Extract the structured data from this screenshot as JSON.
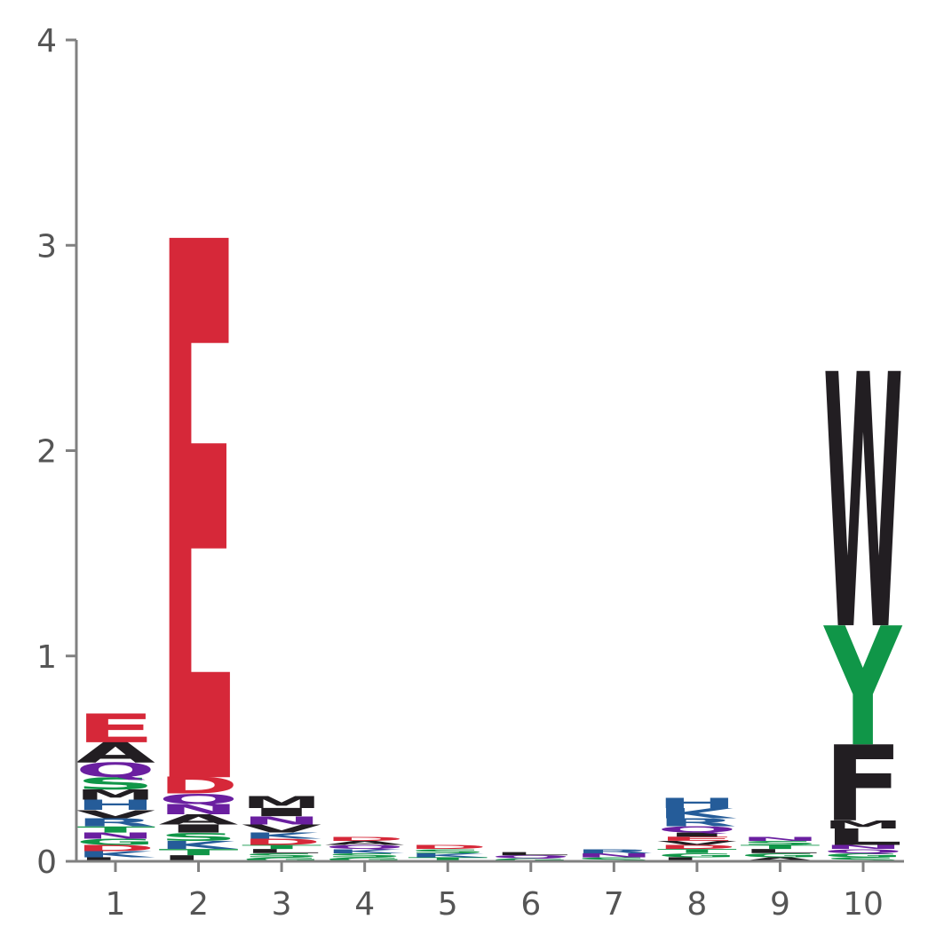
{
  "chart_data": {
    "type": "sequence-logo",
    "title": "",
    "xlabel": "",
    "ylabel": "",
    "ylim": [
      0,
      4
    ],
    "y_ticks": [
      "0",
      "1",
      "2",
      "3",
      "4"
    ],
    "x_ticks": [
      "1",
      "2",
      "3",
      "4",
      "5",
      "6",
      "7",
      "8",
      "9",
      "10"
    ],
    "grid": false,
    "legend": "none",
    "colors": {
      "acidic": "#d62839",
      "polar": "#109648",
      "basic": "#255c99",
      "hydrophobic": "#221e22",
      "neutral": "#6a1fa0"
    },
    "positions": [
      {
        "position": "1",
        "letters": [
          {
            "letter": "L",
            "group": "hydrophobic",
            "height": 0.02
          },
          {
            "letter": "K",
            "group": "basic",
            "height": 0.03
          },
          {
            "letter": "D",
            "group": "acidic",
            "height": 0.03
          },
          {
            "letter": "G",
            "group": "polar",
            "height": 0.03
          },
          {
            "letter": "N",
            "group": "neutral",
            "height": 0.03
          },
          {
            "letter": "T",
            "group": "polar",
            "height": 0.03
          },
          {
            "letter": "R",
            "group": "basic",
            "height": 0.04
          },
          {
            "letter": "V",
            "group": "hydrophobic",
            "height": 0.04
          },
          {
            "letter": "H",
            "group": "basic",
            "height": 0.05
          },
          {
            "letter": "M",
            "group": "hydrophobic",
            "height": 0.05
          },
          {
            "letter": "S",
            "group": "polar",
            "height": 0.06
          },
          {
            "letter": "Q",
            "group": "neutral",
            "height": 0.07
          },
          {
            "letter": "A",
            "group": "hydrophobic",
            "height": 0.1
          },
          {
            "letter": "E",
            "group": "acidic",
            "height": 0.14
          }
        ]
      },
      {
        "position": "2",
        "letters": [
          {
            "letter": "L",
            "group": "hydrophobic",
            "height": 0.03
          },
          {
            "letter": "T",
            "group": "polar",
            "height": 0.03
          },
          {
            "letter": "K",
            "group": "basic",
            "height": 0.04
          },
          {
            "letter": "S",
            "group": "polar",
            "height": 0.04
          },
          {
            "letter": "I",
            "group": "hydrophobic",
            "height": 0.04
          },
          {
            "letter": "A",
            "group": "hydrophobic",
            "height": 0.05
          },
          {
            "letter": "N",
            "group": "neutral",
            "height": 0.05
          },
          {
            "letter": "Q",
            "group": "neutral",
            "height": 0.05
          },
          {
            "letter": "D",
            "group": "acidic",
            "height": 0.08
          },
          {
            "letter": "E",
            "group": "acidic",
            "height": 2.63
          }
        ]
      },
      {
        "position": "3",
        "letters": [
          {
            "letter": "G",
            "group": "polar",
            "height": 0.02
          },
          {
            "letter": "S",
            "group": "polar",
            "height": 0.02
          },
          {
            "letter": "L",
            "group": "hydrophobic",
            "height": 0.02
          },
          {
            "letter": "T",
            "group": "polar",
            "height": 0.02
          },
          {
            "letter": "D",
            "group": "acidic",
            "height": 0.03
          },
          {
            "letter": "K",
            "group": "basic",
            "height": 0.03
          },
          {
            "letter": "V",
            "group": "hydrophobic",
            "height": 0.04
          },
          {
            "letter": "N",
            "group": "neutral",
            "height": 0.04
          },
          {
            "letter": "I",
            "group": "hydrophobic",
            "height": 0.04
          },
          {
            "letter": "M",
            "group": "hydrophobic",
            "height": 0.06
          }
        ]
      },
      {
        "position": "4",
        "letters": [
          {
            "letter": "G",
            "group": "polar",
            "height": 0.02
          },
          {
            "letter": "S",
            "group": "polar",
            "height": 0.02
          },
          {
            "letter": "K",
            "group": "basic",
            "height": 0.02
          },
          {
            "letter": "Q",
            "group": "neutral",
            "height": 0.02
          },
          {
            "letter": "A",
            "group": "hydrophobic",
            "height": 0.02
          },
          {
            "letter": "D",
            "group": "acidic",
            "height": 0.02
          }
        ]
      },
      {
        "position": "5",
        "letters": [
          {
            "letter": "T",
            "group": "polar",
            "height": 0.02
          },
          {
            "letter": "K",
            "group": "basic",
            "height": 0.02
          },
          {
            "letter": "S",
            "group": "polar",
            "height": 0.02
          },
          {
            "letter": "D",
            "group": "acidic",
            "height": 0.02
          }
        ]
      },
      {
        "position": "6",
        "letters": [
          {
            "letter": "G",
            "group": "polar",
            "height": 0.015
          },
          {
            "letter": "Q",
            "group": "neutral",
            "height": 0.015
          },
          {
            "letter": "L",
            "group": "hydrophobic",
            "height": 0.015
          }
        ]
      },
      {
        "position": "7",
        "letters": [
          {
            "letter": "S",
            "group": "polar",
            "height": 0.02
          },
          {
            "letter": "N",
            "group": "neutral",
            "height": 0.02
          },
          {
            "letter": "R",
            "group": "basic",
            "height": 0.02
          }
        ]
      },
      {
        "position": "8",
        "letters": [
          {
            "letter": "L",
            "group": "hydrophobic",
            "height": 0.02
          },
          {
            "letter": "G",
            "group": "polar",
            "height": 0.02
          },
          {
            "letter": "T",
            "group": "polar",
            "height": 0.02
          },
          {
            "letter": "D",
            "group": "acidic",
            "height": 0.02
          },
          {
            "letter": "V",
            "group": "hydrophobic",
            "height": 0.02
          },
          {
            "letter": "E",
            "group": "acidic",
            "height": 0.02
          },
          {
            "letter": "I",
            "group": "hydrophobic",
            "height": 0.02
          },
          {
            "letter": "Q",
            "group": "neutral",
            "height": 0.03
          },
          {
            "letter": "R",
            "group": "basic",
            "height": 0.04
          },
          {
            "letter": "K",
            "group": "basic",
            "height": 0.05
          },
          {
            "letter": "H",
            "group": "basic",
            "height": 0.05
          }
        ]
      },
      {
        "position": "9",
        "letters": [
          {
            "letter": "A",
            "group": "hydrophobic",
            "height": 0.02
          },
          {
            "letter": "G",
            "group": "polar",
            "height": 0.02
          },
          {
            "letter": "L",
            "group": "hydrophobic",
            "height": 0.02
          },
          {
            "letter": "T",
            "group": "polar",
            "height": 0.02
          },
          {
            "letter": "S",
            "group": "polar",
            "height": 0.02
          },
          {
            "letter": "N",
            "group": "neutral",
            "height": 0.02
          }
        ]
      },
      {
        "position": "10",
        "letters": [
          {
            "letter": "S",
            "group": "polar",
            "height": 0.02
          },
          {
            "letter": "G",
            "group": "polar",
            "height": 0.02
          },
          {
            "letter": "Q",
            "group": "neutral",
            "height": 0.02
          },
          {
            "letter": "N",
            "group": "neutral",
            "height": 0.02
          },
          {
            "letter": "L",
            "group": "hydrophobic",
            "height": 0.08
          },
          {
            "letter": "M",
            "group": "hydrophobic",
            "height": 0.04
          },
          {
            "letter": "F",
            "group": "hydrophobic",
            "height": 0.37
          },
          {
            "letter": "Y",
            "group": "polar",
            "height": 0.58
          },
          {
            "letter": "W",
            "group": "hydrophobic",
            "height": 1.24
          }
        ]
      }
    ]
  }
}
